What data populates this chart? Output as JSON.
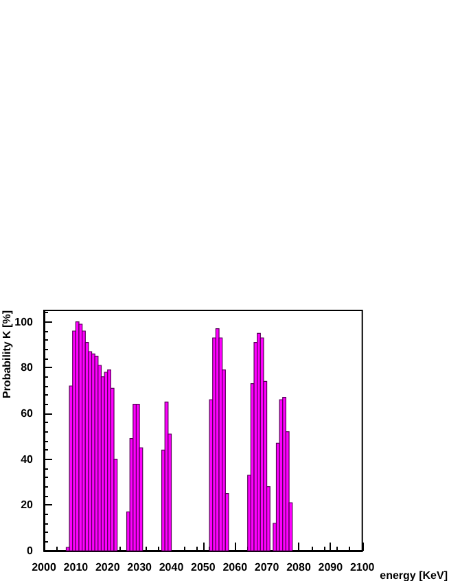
{
  "chart_data": {
    "type": "histogram",
    "xlabel": "energy [KeV]",
    "ylabel": "Probability K [%]",
    "color": "#ff00ff",
    "bins": [
      2007,
      2008,
      2009,
      2010,
      2011,
      2012,
      2013,
      2014,
      2015,
      2016,
      2017,
      2018,
      2019,
      2020,
      2021,
      2022,
      2023,
      2024,
      2025,
      2026,
      2027,
      2028,
      2029,
      2030,
      2031,
      2032,
      2033,
      2034,
      2035,
      2036,
      2037,
      2038,
      2039,
      2040,
      2041,
      2042,
      2043,
      2044,
      2045,
      2046,
      2047,
      2048,
      2049,
      2050,
      2051,
      2052,
      2053,
      2054,
      2055,
      2056,
      2057,
      2058,
      2059,
      2060,
      2061,
      2062,
      2063,
      2064,
      2065,
      2066,
      2067,
      2068,
      2069,
      2070,
      2071,
      2072,
      2073,
      2074,
      2075,
      2076,
      2077,
      2078
    ],
    "values": [
      1.5,
      72,
      96,
      100,
      99,
      96,
      91,
      87,
      86,
      85,
      81,
      76,
      78,
      79,
      71,
      40,
      0,
      0,
      0,
      17,
      49,
      64,
      64,
      45,
      0,
      0,
      0,
      0,
      0,
      0,
      44,
      65,
      51,
      0,
      0,
      0,
      0,
      0,
      0,
      0,
      0,
      0,
      0,
      0,
      0,
      66,
      93,
      97,
      93,
      79,
      25,
      0,
      0,
      0,
      0,
      0,
      0,
      33,
      73,
      91,
      95,
      93,
      74,
      28,
      0,
      12,
      47,
      66,
      67,
      52,
      21
    ],
    "xlim": [
      2000,
      2100
    ],
    "xticks": [
      2000,
      2010,
      2020,
      2030,
      2040,
      2050,
      2060,
      2070,
      2080,
      2090,
      2100
    ],
    "ylim": [
      0,
      105
    ],
    "yticks": [
      0,
      20,
      40,
      60,
      80,
      100
    ],
    "grid": false
  }
}
